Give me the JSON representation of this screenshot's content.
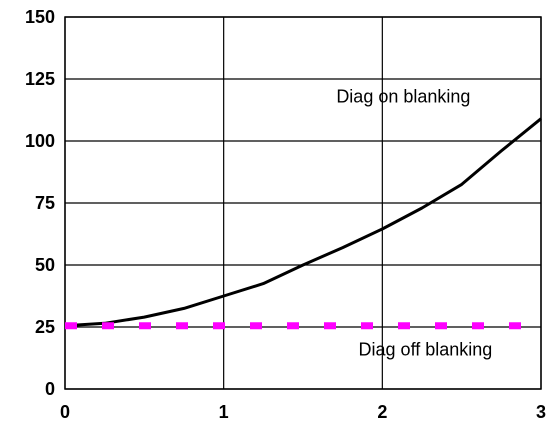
{
  "chart_data": {
    "type": "line",
    "title": "",
    "xlabel": "",
    "ylabel": "",
    "xlim": [
      0,
      3
    ],
    "ylim": [
      0,
      150
    ],
    "x_ticks": [
      "0",
      "1",
      "2",
      "3"
    ],
    "y_ticks": [
      "0",
      "25",
      "50",
      "75",
      "100",
      "125",
      "150"
    ],
    "grid": true,
    "legend": "none",
    "series": [
      {
        "color": "#000000",
        "style": "solid",
        "x": [
          0,
          0.25,
          0.5,
          0.75,
          1.0,
          1.25,
          1.5,
          1.75,
          2.0,
          2.25,
          2.5,
          2.75,
          3.0
        ],
        "y": [
          25.5,
          26.5,
          29.0,
          32.5,
          37.5,
          42.5,
          50.0,
          57.0,
          64.5,
          73.0,
          82.5,
          96.0,
          109.0
        ]
      },
      {
        "color": "#ff00ff",
        "style": "dashed",
        "x": [
          0,
          3
        ],
        "y": [
          25.5,
          25.5
        ]
      }
    ],
    "annotations": [
      {
        "text": "Diag on blanking",
        "x": 1.71,
        "y": 115.5
      },
      {
        "text": "Diag off blanking",
        "x": 1.85,
        "y": 13.5
      }
    ]
  }
}
